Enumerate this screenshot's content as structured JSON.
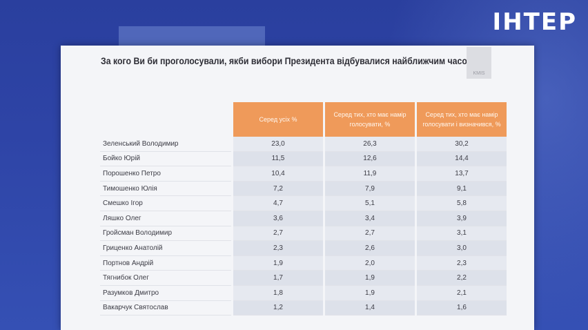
{
  "channel": {
    "logo_text": "ІНТЕР"
  },
  "slide": {
    "brand": "KMIS"
  },
  "chart_data": {
    "type": "table",
    "title": "За кого Ви би проголосували, якби вибори Президента відбувалися найближчим часом?",
    "columns": [
      "Серед усіх %",
      "Серед тих, хто має намір голосувати, %",
      "Серед тих, хто має намір голосувати і визначився, %"
    ],
    "rows": [
      {
        "name": "Зеленський Володимир",
        "values": [
          "23,0",
          "26,3",
          "30,2"
        ]
      },
      {
        "name": "Бойко Юрій",
        "values": [
          "11,5",
          "12,6",
          "14,4"
        ]
      },
      {
        "name": "Порошенко Петро",
        "values": [
          "10,4",
          "11,9",
          "13,7"
        ]
      },
      {
        "name": "Тимошенко Юлія",
        "values": [
          "7,2",
          "7,9",
          "9,1"
        ]
      },
      {
        "name": "Смешко Ігор",
        "values": [
          "4,7",
          "5,1",
          "5,8"
        ]
      },
      {
        "name": "Ляшко Олег",
        "values": [
          "3,6",
          "3,4",
          "3,9"
        ]
      },
      {
        "name": "Гройсман Володимир",
        "values": [
          "2,7",
          "2,7",
          "3,1"
        ]
      },
      {
        "name": "Гриценко Анатолій",
        "values": [
          "2,3",
          "2,6",
          "3,0"
        ]
      },
      {
        "name": "Портнов Андрій",
        "values": [
          "1,9",
          "2,0",
          "2,3"
        ]
      },
      {
        "name": "Тягнибок Олег",
        "values": [
          "1,7",
          "1,9",
          "2,2"
        ]
      },
      {
        "name": "Разумков Дмитро",
        "values": [
          "1,8",
          "1,9",
          "2,1"
        ]
      },
      {
        "name": "Вакарчук Святослав",
        "values": [
          "1,2",
          "1,4",
          "1,6"
        ]
      }
    ]
  },
  "colors": {
    "header_orange": "#ef9a5a",
    "background_blue": "#2e44a6"
  }
}
